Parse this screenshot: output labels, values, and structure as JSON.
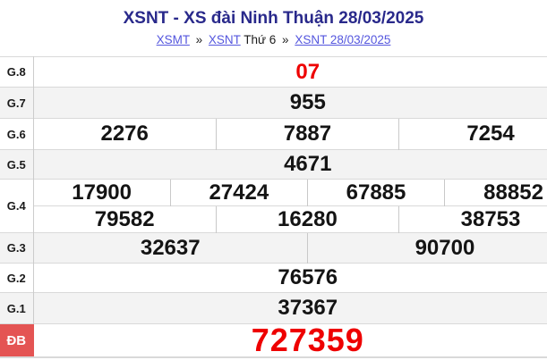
{
  "header": {
    "title": "XSNT - XS đài Ninh Thuận 28/03/2025",
    "breadcrumb": {
      "link_region": "XSMT",
      "sep1": "»",
      "link_province": "XSNT",
      "weekday": "Thứ 6",
      "sep2": "»",
      "link_date": "XSNT 28/03/2025"
    }
  },
  "results": {
    "g8": {
      "label": "G.8",
      "values": [
        "07"
      ]
    },
    "g7": {
      "label": "G.7",
      "values": [
        "955"
      ]
    },
    "g6": {
      "label": "G.6",
      "values": [
        "2276",
        "7887",
        "7254"
      ]
    },
    "g5": {
      "label": "G.5",
      "values": [
        "4671"
      ]
    },
    "g4": {
      "label": "G.4",
      "line1": [
        "17900",
        "27424",
        "67885",
        "88852"
      ],
      "line2": [
        "79582",
        "16280",
        "38753"
      ]
    },
    "g3": {
      "label": "G.3",
      "values": [
        "32637",
        "90700"
      ]
    },
    "g2": {
      "label": "G.2",
      "values": [
        "76576"
      ]
    },
    "g1": {
      "label": "G.1",
      "values": [
        "37367"
      ]
    },
    "db": {
      "label": "ĐB",
      "values": [
        "727359"
      ]
    }
  },
  "colors": {
    "title_text": "#29298b",
    "link_text": "#5456de",
    "number_text": "#141414",
    "highlight_red": "#ee0000",
    "special_label_bg": "#e45453",
    "row_alt_bg": "#f3f3f3",
    "border": "#d9d9d9"
  }
}
